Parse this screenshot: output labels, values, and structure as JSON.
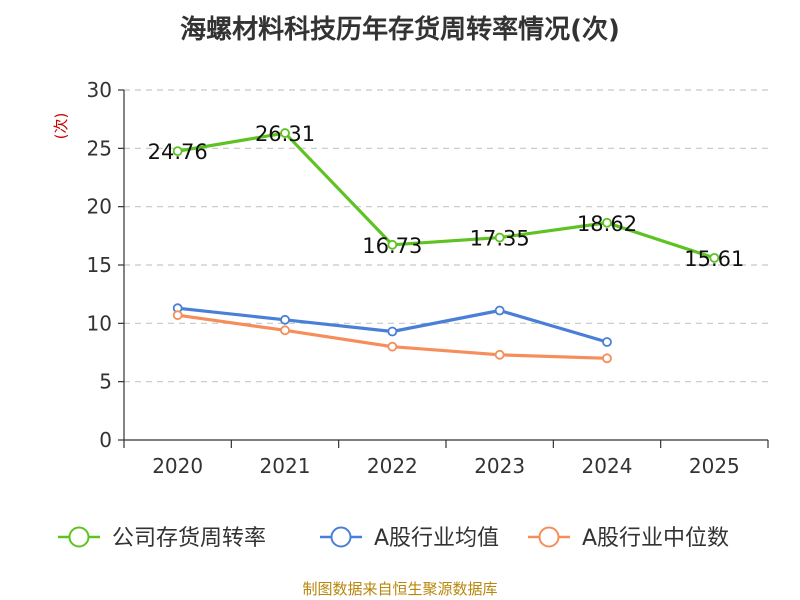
{
  "chart_data": {
    "type": "line",
    "title": "海螺材料科技历年存货周转率情况(次)",
    "ylabel": "(次)",
    "xlabel": "",
    "categories": [
      "2020",
      "2021",
      "2022",
      "2023",
      "2024",
      "2025"
    ],
    "ylim": [
      0,
      30
    ],
    "yticks": [
      0,
      5,
      10,
      15,
      20,
      25,
      30
    ],
    "grid": true,
    "legend_position": "bottom",
    "series": [
      {
        "name": "公司存货周转率",
        "color": "#5ec322",
        "values": [
          24.76,
          26.31,
          16.73,
          17.35,
          18.62,
          15.61
        ],
        "labels": [
          "24.76",
          "26.31",
          "16.73",
          "17.35",
          "18.62",
          "15.61"
        ]
      },
      {
        "name": "A股行业均值",
        "color": "#4a7fd8",
        "values": [
          11.3,
          10.3,
          9.3,
          11.1,
          8.4,
          null
        ]
      },
      {
        "name": "A股行业中位数",
        "color": "#f58e5a",
        "values": [
          10.7,
          9.4,
          8.0,
          7.3,
          7.0,
          null
        ]
      }
    ],
    "source": "制图数据来自恒生聚源数据库"
  }
}
